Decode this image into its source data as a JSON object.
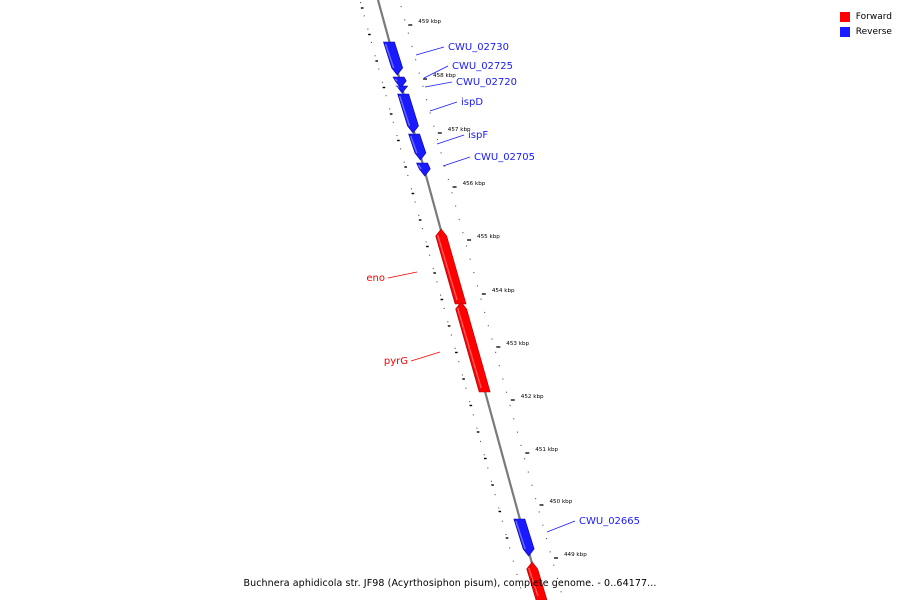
{
  "legend": [
    {
      "label": "Forward",
      "color": "#ff0000"
    },
    {
      "label": "Reverse",
      "color": "#1a1aff"
    }
  ],
  "caption": "Buchnera aphidicola str. JF98 (Acyrthosiphon pisum), complete genome. - 0..64177...",
  "ticks": [
    "459 kbp",
    "458 kbp",
    "457 kbp",
    "456 kbp",
    "455 kbp",
    "454 kbp",
    "453 kbp",
    "452 kbp",
    "451 kbp",
    "450 kbp",
    "449 kbp"
  ],
  "genes": [
    {
      "label": "CWU_02730",
      "strand": "reverse"
    },
    {
      "label": "CWU_02725",
      "strand": "reverse"
    },
    {
      "label": "CWU_02720",
      "strand": "reverse"
    },
    {
      "label": "ispD",
      "strand": "reverse"
    },
    {
      "label": "ispF",
      "strand": "reverse"
    },
    {
      "label": "CWU_02705",
      "strand": "reverse"
    },
    {
      "label": "eno",
      "strand": "forward"
    },
    {
      "label": "pyrG",
      "strand": "forward"
    },
    {
      "label": "CWU_02665",
      "strand": "reverse"
    },
    {
      "label": "",
      "strand": "forward"
    }
  ],
  "colors": {
    "forward": "#ff0000",
    "reverse": "#1a1aff",
    "backbone": "#808080"
  }
}
